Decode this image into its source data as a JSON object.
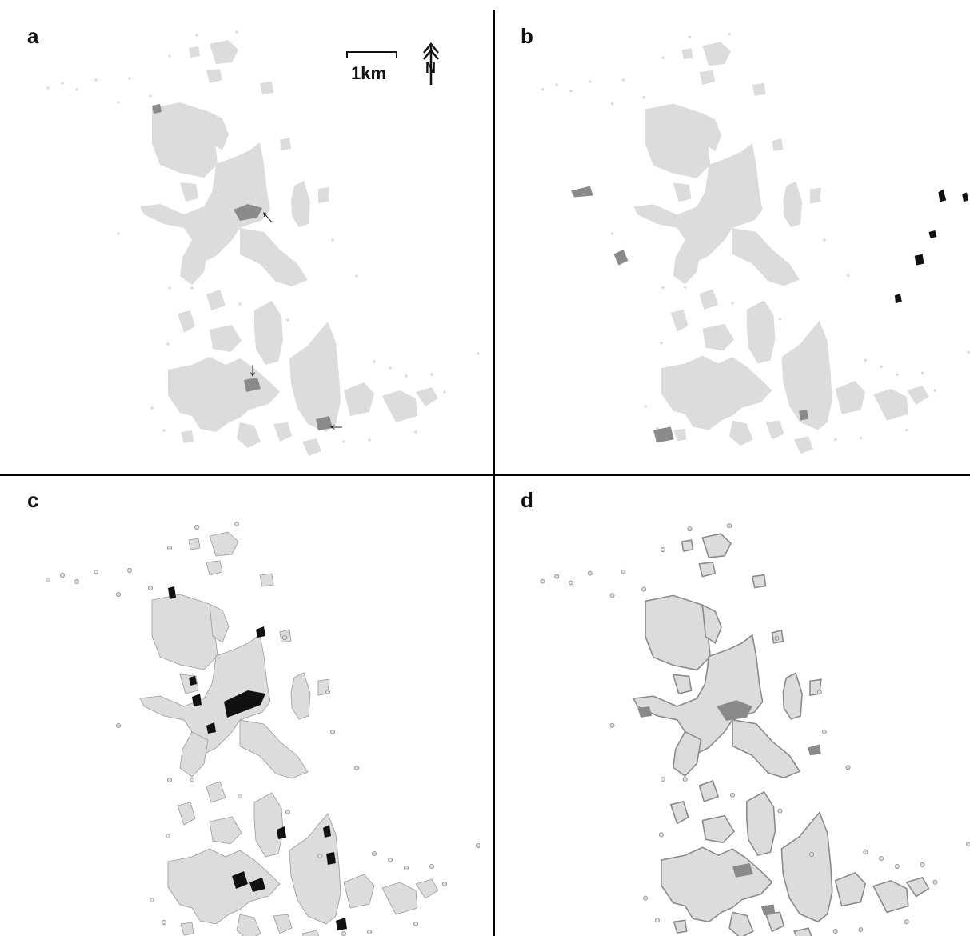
{
  "panels": [
    {
      "label": "a"
    },
    {
      "label": "b"
    },
    {
      "label": "c"
    },
    {
      "label": "d"
    }
  ],
  "scale_bar": {
    "label": "1km"
  },
  "north_arrow": {
    "label": "N"
  },
  "colors": {
    "land": "#dcdcdc",
    "change_medium": "#8a8a8a",
    "change_dark": "#111111",
    "divider": "#000000",
    "background": "#ffffff"
  }
}
